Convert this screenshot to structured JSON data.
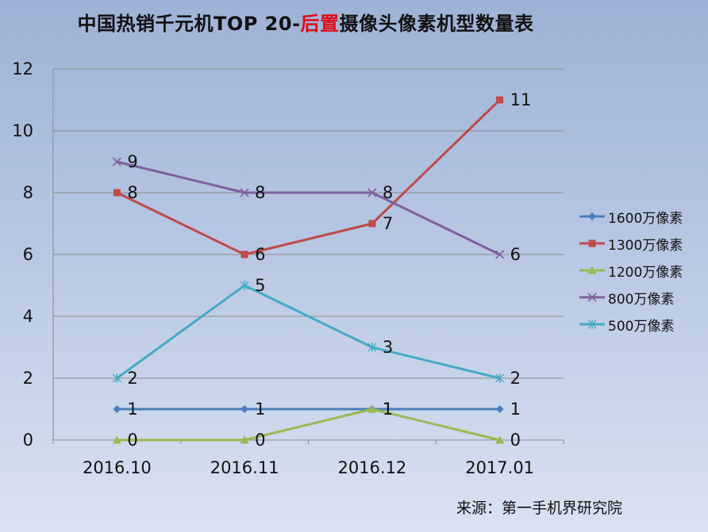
{
  "title": {
    "part1": "中国热销千元机TOP 20-",
    "highlight": "后置",
    "part2": "摄像头像素机型数量表",
    "highlight_color": "#e30613"
  },
  "source": "来源：第一手机界研究院",
  "chart_data": {
    "type": "line",
    "categories": [
      "2016.10",
      "2016.11",
      "2016.12",
      "2017.01"
    ],
    "ylim": [
      0,
      12
    ],
    "yticks": [
      0,
      2,
      4,
      6,
      8,
      10,
      12
    ],
    "grid": true,
    "legend_position": "right",
    "series": [
      {
        "name": "1600万像素",
        "values": [
          1,
          1,
          1,
          1
        ],
        "color": "#4a7ebb",
        "marker": "diamond"
      },
      {
        "name": "1300万像素",
        "values": [
          8,
          6,
          7,
          11
        ],
        "color": "#be4b48",
        "marker": "square"
      },
      {
        "name": "1200万像素",
        "values": [
          0,
          0,
          1,
          0
        ],
        "color": "#98b954",
        "marker": "triangle"
      },
      {
        "name": "800万像素",
        "values": [
          9,
          8,
          8,
          6
        ],
        "color": "#7d60a0",
        "marker": "x"
      },
      {
        "name": "500万像素",
        "values": [
          2,
          5,
          3,
          2
        ],
        "color": "#46aac5",
        "marker": "star"
      }
    ]
  }
}
